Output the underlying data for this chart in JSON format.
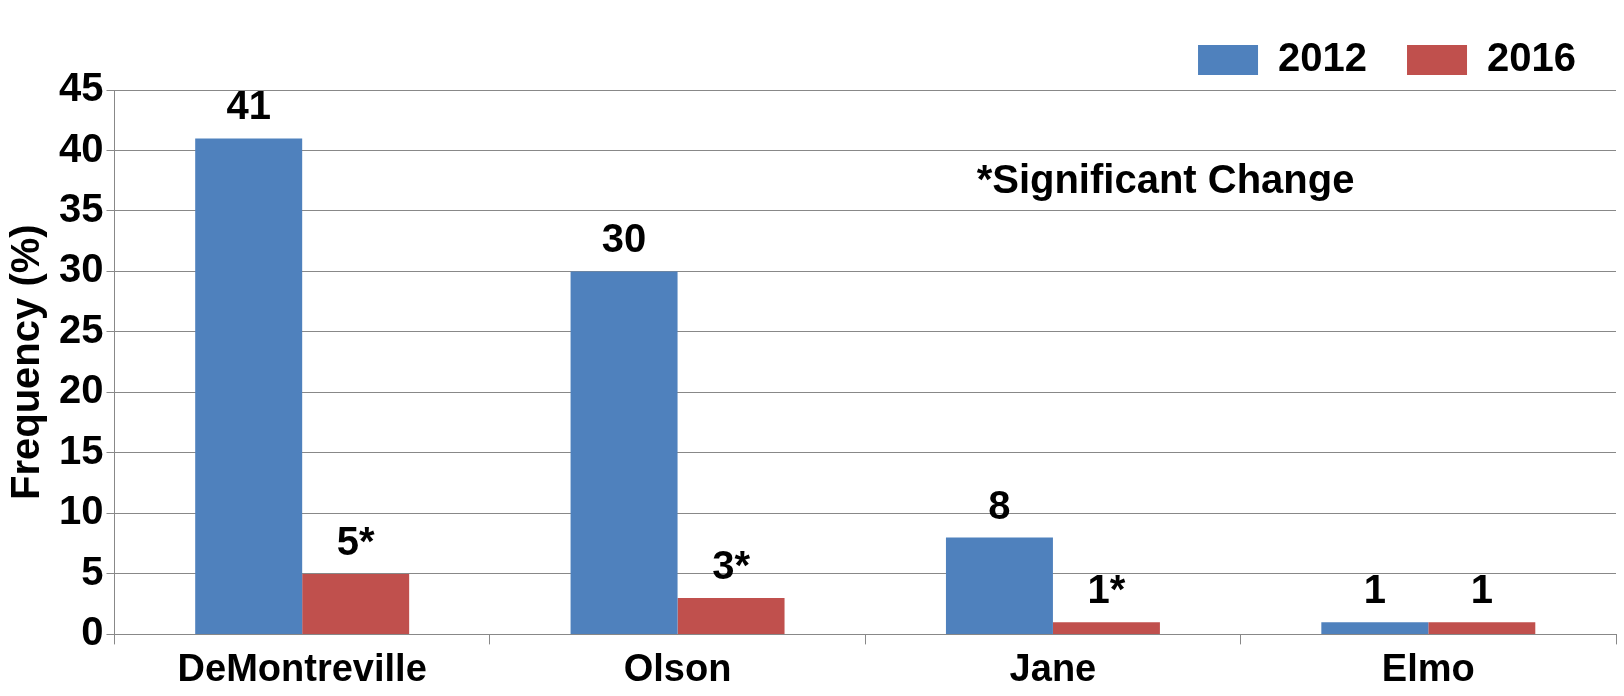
{
  "chart_data": {
    "type": "bar",
    "ylabel": "Frequency (%)",
    "categories": [
      "DeMontreville",
      "Olson",
      "Jane",
      "Elmo"
    ],
    "series": [
      {
        "name": "2012",
        "color": "#4f81bd",
        "values": [
          41,
          30,
          8,
          1
        ],
        "value_labels": [
          "41",
          "30",
          "8",
          "1"
        ]
      },
      {
        "name": "2016",
        "color": "#c0504d",
        "values": [
          5,
          3,
          1,
          1
        ],
        "value_labels": [
          "5*",
          "3*",
          "1*",
          "1"
        ]
      }
    ],
    "ylim": [
      0,
      45
    ],
    "yticks": [
      0,
      5,
      10,
      15,
      20,
      25,
      30,
      35,
      40,
      45
    ],
    "grid": "y",
    "legend": "top right",
    "annotations": [
      "*Significant Change"
    ]
  }
}
